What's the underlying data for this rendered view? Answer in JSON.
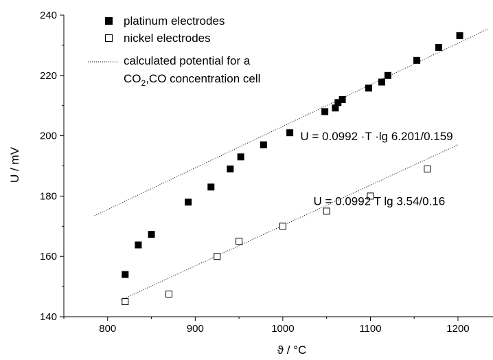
{
  "chart_data": {
    "type": "scatter",
    "xlabel": "ϑ / °C",
    "ylabel": "U / mV",
    "xlim": [
      750,
      1240
    ],
    "ylim": [
      140,
      240
    ],
    "xticks": [
      800,
      900,
      1000,
      1100,
      1200
    ],
    "yticks": [
      140,
      160,
      180,
      200,
      220,
      240
    ],
    "grid": false,
    "legend_position": "top-left",
    "legend": {
      "platinum": "platinum electrodes",
      "nickel": "nickel electrodes",
      "line_1": "calculated potential for a",
      "line_2_a": "CO",
      "line_2_sub": "2",
      "line_2_b": ",CO concentration cell"
    },
    "series": [
      {
        "name": "platinum electrodes",
        "marker": "filled-square",
        "color": "#000000",
        "points": [
          [
            820,
            154
          ],
          [
            835,
            163.8
          ],
          [
            850,
            167.3
          ],
          [
            892,
            178
          ],
          [
            918,
            183
          ],
          [
            940,
            189
          ],
          [
            952,
            193
          ],
          [
            978,
            197
          ],
          [
            1008,
            201
          ],
          [
            1048,
            208
          ],
          [
            1060,
            209.2
          ],
          [
            1063,
            211
          ],
          [
            1068,
            212
          ],
          [
            1098,
            215.8
          ],
          [
            1113,
            217.8
          ],
          [
            1120,
            220
          ],
          [
            1153,
            225
          ],
          [
            1178,
            229.3
          ],
          [
            1202,
            233.2
          ]
        ]
      },
      {
        "name": "nickel electrodes",
        "marker": "open-square",
        "color": "#000000",
        "points": [
          [
            820,
            145
          ],
          [
            870,
            147.5
          ],
          [
            925,
            160
          ],
          [
            950,
            165
          ],
          [
            1000,
            170
          ],
          [
            1050,
            175
          ],
          [
            1100,
            180
          ],
          [
            1165,
            189
          ]
        ]
      },
      {
        "name": "calculated potential for a CO2,CO concentration cell",
        "style": "dotted",
        "lines": [
          [
            [
              785,
              173.5
            ],
            [
              1235,
              235.5
            ]
          ],
          [
            [
              815,
              145.5
            ],
            [
              1200,
              197
            ]
          ]
        ]
      }
    ],
    "annotations": [
      {
        "text": "U =  0.0992 ·T ·lg 6.201/0.159",
        "x": 1020,
        "y": 198.5
      },
      {
        "text": "U = 0.0992 T lg 3.54/0.16",
        "x": 1035,
        "y": 177
      }
    ]
  }
}
